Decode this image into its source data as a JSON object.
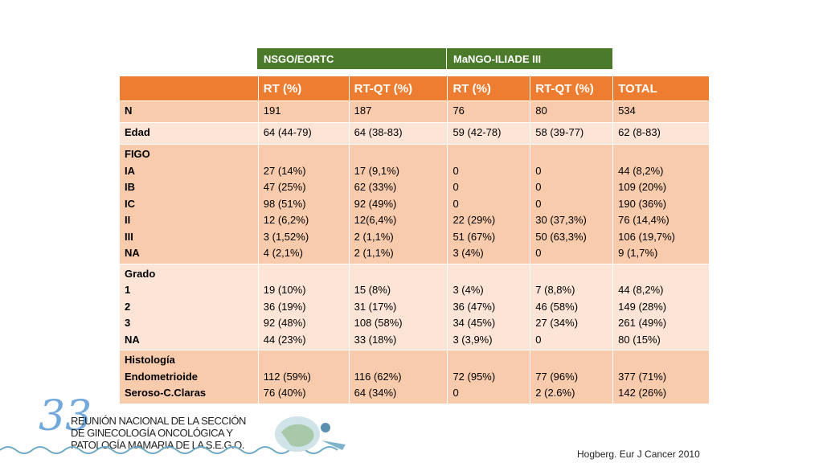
{
  "group_headers": [
    "NSGO/EORTC",
    "MaNGO-ILIADE III"
  ],
  "columns": [
    "",
    "RT (%)",
    "RT-QT (%)",
    "RT (%)",
    "RT-QT (%)",
    "TOTAL"
  ],
  "rows": [
    {
      "label": [
        "N"
      ],
      "cells": [
        [
          "191"
        ],
        [
          "187"
        ],
        [
          "76"
        ],
        [
          "80"
        ],
        [
          "534"
        ]
      ]
    },
    {
      "label": [
        "Edad"
      ],
      "cells": [
        [
          "64 (44-79)"
        ],
        [
          "64 (38-83)"
        ],
        [
          "59 (42-78)"
        ],
        [
          "58 (39-77)"
        ],
        [
          "62 (8-83)"
        ]
      ]
    },
    {
      "label": [
        "FIGO",
        "IA",
        "IB",
        "IC",
        "II",
        "III",
        "NA"
      ],
      "cells": [
        [
          "",
          "27 (14%)",
          "47 (25%)",
          "98 (51%)",
          "12 (6,2%)",
          "3 (1,52%)",
          "4 (2,1%)"
        ],
        [
          "",
          "17 (9,1%)",
          "62 (33%)",
          "92 (49%)",
          "12(6,4%)",
          "2 (1,1%)",
          "2 (1,1%)"
        ],
        [
          "",
          "0",
          "0",
          "0",
          "22 (29%)",
          "51 (67%)",
          "3 (4%)"
        ],
        [
          "",
          "0",
          "0",
          "0",
          "30 (37,3%)",
          "50 (63,3%)",
          "0"
        ],
        [
          "",
          "44 (8,2%)",
          "109 (20%)",
          "190 (36%)",
          "76 (14,4%)",
          "106 (19,7%)",
          "9 (1,7%)"
        ]
      ]
    },
    {
      "label": [
        "Grado",
        "1",
        "2",
        "3",
        "NA"
      ],
      "cells": [
        [
          "",
          "19 (10%)",
          "36 (19%)",
          "92 (48%)",
          "44 (23%)"
        ],
        [
          "",
          "15 (8%)",
          "31 (17%)",
          "108 (58%)",
          "33 (18%)"
        ],
        [
          "",
          "3 (4%)",
          "36 (47%)",
          "34 (45%)",
          "3 (3,9%)"
        ],
        [
          "",
          "7 (8,8%)",
          "46 (58%)",
          "27 (34%)",
          "0"
        ],
        [
          "",
          "44 (8,2%)",
          "149 (28%)",
          "261 (49%)",
          "80 (15%)"
        ]
      ]
    },
    {
      "label": [
        "Histología",
        "Endometrioide",
        "Seroso-C.Claras"
      ],
      "cells": [
        [
          "",
          "112 (59%)",
          "76 (40%)"
        ],
        [
          "",
          "116 (62%)",
          "64 (34%)"
        ],
        [
          "",
          "72 (95%)",
          "0"
        ],
        [
          "",
          "77 (96%)",
          "2 (2.6%)"
        ],
        [
          "",
          "377 (71%)",
          "142 (26%)"
        ]
      ]
    }
  ],
  "logo": {
    "number": "33",
    "lines": [
      "REUNIÓN NACIONAL DE LA SECCIÓN",
      "DE GINECOLOGÍA ONCOLÓGICA Y",
      "PATOLOGÍA MAMARIA DE LA S.E.G.O."
    ]
  },
  "citation": "Hogberg. Eur J Cancer 2010",
  "colors": {
    "header_orange": "#ed7d31",
    "group_green": "#4a7a2a",
    "row_dark": "#f8cbad",
    "row_light": "#fce4d6"
  }
}
